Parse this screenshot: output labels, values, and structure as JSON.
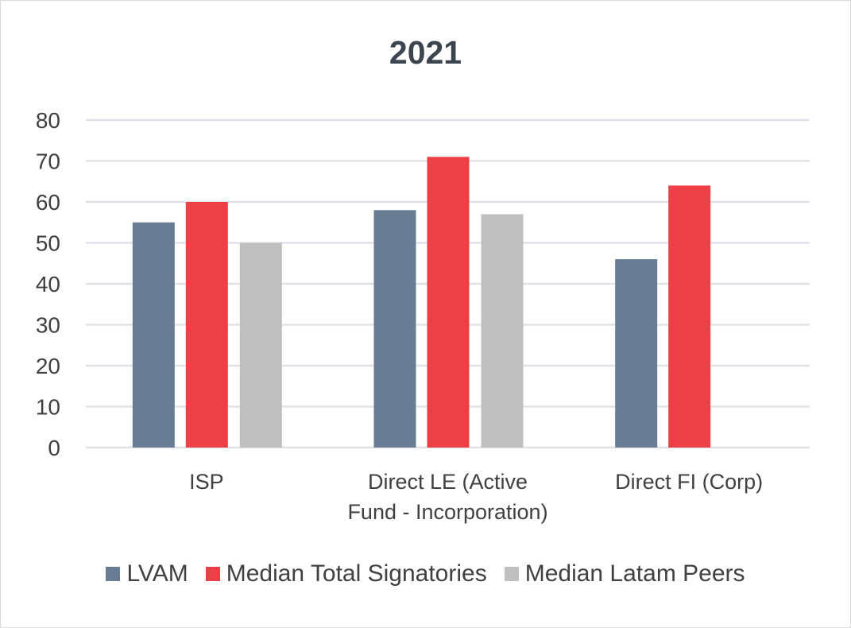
{
  "chart_data": {
    "type": "bar",
    "title": "2021",
    "categories": [
      [
        "ISP"
      ],
      [
        "Direct LE (Active",
        "Fund - Incorporation)"
      ],
      [
        "Direct FI (Corp)"
      ]
    ],
    "series": [
      {
        "name": "LVAM",
        "color": "#687d93",
        "values": [
          55,
          58,
          46
        ]
      },
      {
        "name": "Median Total Signatories",
        "color": "#ec4046",
        "values": [
          60,
          71,
          64
        ]
      },
      {
        "name": "Median Latam Peers",
        "color": "#bfbfbf",
        "values": [
          50,
          57,
          null
        ]
      }
    ],
    "ylim": [
      0,
      80
    ],
    "yticks": [
      0,
      10,
      20,
      30,
      40,
      50,
      60,
      70,
      80
    ],
    "grid": true,
    "legend": "bottom"
  }
}
